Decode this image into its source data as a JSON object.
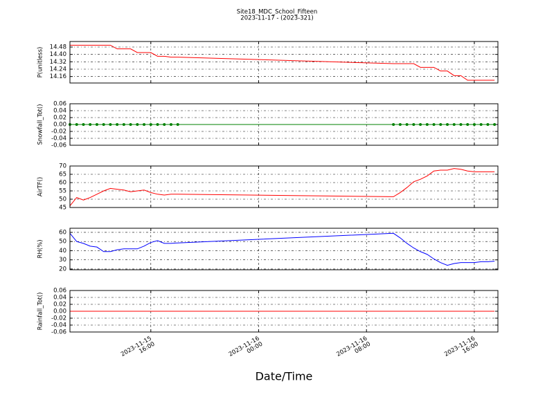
{
  "chart_data": {
    "type": "line",
    "title": "Site18_MDC_School_Fifteen",
    "subtitle": "2023-11-17 - (2023-321)",
    "xlabel": "Date/Time",
    "grid": true,
    "x": [
      "2023-11-15 10:00",
      "2023-11-15 10:30",
      "2023-11-15 11:00",
      "2023-11-15 11:30",
      "2023-11-15 12:00",
      "2023-11-15 12:30",
      "2023-11-15 13:00",
      "2023-11-15 13:30",
      "2023-11-15 14:00",
      "2023-11-15 14:30",
      "2023-11-15 15:00",
      "2023-11-15 15:30",
      "2023-11-15 16:00",
      "2023-11-15 16:30",
      "2023-11-15 17:00",
      "2023-11-15 17:30",
      "2023-11-15 18:00",
      "2023-11-16 10:00",
      "2023-11-16 10:30",
      "2023-11-16 11:00",
      "2023-11-16 11:30",
      "2023-11-16 12:00",
      "2023-11-16 12:30",
      "2023-11-16 13:00",
      "2023-11-16 13:30",
      "2023-11-16 14:00",
      "2023-11-16 14:30",
      "2023-11-16 15:00",
      "2023-11-16 15:30",
      "2023-11-16 16:00",
      "2023-11-16 16:30",
      "2023-11-16 17:00",
      "2023-11-16 17:30"
    ],
    "xlim": [
      "2023-11-15 10:00",
      "2023-11-16 17:45"
    ],
    "xticks": [
      {
        "value": "2023-11-15 16:00",
        "label": "2023-11-15\n16:00"
      },
      {
        "value": "2023-11-16 00:00",
        "label": "2023-11-16\n00:00"
      },
      {
        "value": "2023-11-16 08:00",
        "label": "2023-11-16\n08:00"
      },
      {
        "value": "2023-11-16 16:00",
        "label": "2023-11-16\n16:00"
      }
    ],
    "panels": [
      {
        "ylabel": "P(unitless)",
        "color": "#ff0000",
        "ylim": [
          14.09,
          14.54
        ],
        "yticks": [
          14.16,
          14.24,
          14.32,
          {
            "value": 14.4,
            "label": "14.40"
          },
          14.48
        ],
        "values": [
          14.5,
          14.5,
          14.5,
          14.5,
          14.5,
          14.5,
          14.5,
          14.46,
          14.46,
          14.46,
          14.42,
          14.42,
          14.42,
          14.38,
          14.38,
          14.37,
          14.37,
          14.3,
          14.3,
          14.3,
          14.3,
          14.26,
          14.26,
          14.26,
          14.22,
          14.22,
          14.17,
          14.17,
          14.12,
          14.12,
          14.12,
          14.12,
          14.12
        ]
      },
      {
        "ylabel": "Snowfall_Tot()",
        "color": "#008000",
        "marker": "o",
        "ylim": [
          -0.06,
          0.06
        ],
        "yticks": [
          -0.06,
          -0.04,
          -0.02,
          {
            "value": 0,
            "label": "0.00"
          },
          0.02,
          0.04,
          0.06
        ],
        "values": [
          0,
          0,
          0,
          0,
          0,
          0,
          0,
          0,
          0,
          0,
          0,
          0,
          0,
          0,
          0,
          0,
          0,
          0,
          0,
          0,
          0,
          0,
          0,
          0,
          0,
          0,
          0,
          0,
          0,
          0,
          0,
          0,
          0
        ]
      },
      {
        "ylabel": "AirTF()",
        "color": "#ff0000",
        "ylim": [
          45,
          70
        ],
        "yticks": [
          45,
          50,
          55,
          60,
          65,
          70
        ],
        "values": [
          46,
          51,
          49.5,
          51,
          53,
          55,
          56.5,
          56,
          55.5,
          54.5,
          55,
          55.5,
          54,
          53,
          52.5,
          53,
          53,
          51.5,
          54,
          57,
          60.5,
          62,
          64,
          67,
          67.5,
          67.5,
          68.5,
          68,
          67,
          66.5,
          66.5,
          66.5,
          66.5
        ]
      },
      {
        "ylabel": "RH(%)",
        "color": "#0000ff",
        "ylim": [
          19.2,
          64.5
        ],
        "yticks": [
          20,
          30,
          40,
          50,
          60
        ],
        "values": [
          59,
          50,
          48,
          45,
          44,
          39,
          39,
          41,
          42,
          42,
          42,
          45,
          49,
          51,
          48,
          48,
          48.5,
          59,
          54,
          48,
          43,
          39,
          36,
          31,
          27,
          24,
          26,
          27,
          27,
          27,
          28,
          28,
          28.5
        ]
      },
      {
        "ylabel": "Rainfall_Tot()",
        "color": "#ff0000",
        "ylim": [
          -0.06,
          0.06
        ],
        "yticks": [
          -0.06,
          -0.04,
          -0.02,
          {
            "value": 0,
            "label": "0.00"
          },
          0.02,
          0.04,
          0.06
        ],
        "values": [
          0,
          0,
          0,
          0,
          0,
          0,
          0,
          0,
          0,
          0,
          0,
          0,
          0,
          0,
          0,
          0,
          0,
          0,
          0,
          0,
          0,
          0,
          0,
          0,
          0,
          0,
          0,
          0,
          0,
          0,
          0,
          0,
          0
        ]
      }
    ]
  }
}
